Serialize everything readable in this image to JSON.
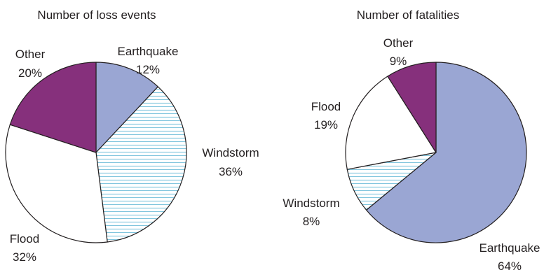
{
  "chart_data": [
    {
      "type": "pie",
      "title": "Number of loss events",
      "slices": [
        {
          "label": "Earthquake",
          "value": 12,
          "value_label": "12%",
          "color": "#9aa6d3",
          "pattern": "solid"
        },
        {
          "label": "Windstorm",
          "value": 36,
          "value_label": "36%",
          "color": "#ffffff",
          "pattern": "horizontal-lines",
          "line_color": "#7ec4dd"
        },
        {
          "label": "Flood",
          "value": 32,
          "value_label": "32%",
          "color": "#ffffff",
          "pattern": "solid"
        },
        {
          "label": "Other",
          "value": 20,
          "value_label": "20%",
          "color": "#86307c",
          "pattern": "solid"
        }
      ]
    },
    {
      "type": "pie",
      "title": "Number of fatalities",
      "slices": [
        {
          "label": "Earthquake",
          "value": 64,
          "value_label": "64%",
          "color": "#9aa6d3",
          "pattern": "solid"
        },
        {
          "label": "Windstorm",
          "value": 8,
          "value_label": "8%",
          "color": "#ffffff",
          "pattern": "horizontal-lines",
          "line_color": "#7ec4dd"
        },
        {
          "label": "Flood",
          "value": 19,
          "value_label": "19%",
          "color": "#ffffff",
          "pattern": "solid"
        },
        {
          "label": "Other",
          "value": 9,
          "value_label": "9%",
          "color": "#86307c",
          "pattern": "solid"
        }
      ]
    }
  ]
}
